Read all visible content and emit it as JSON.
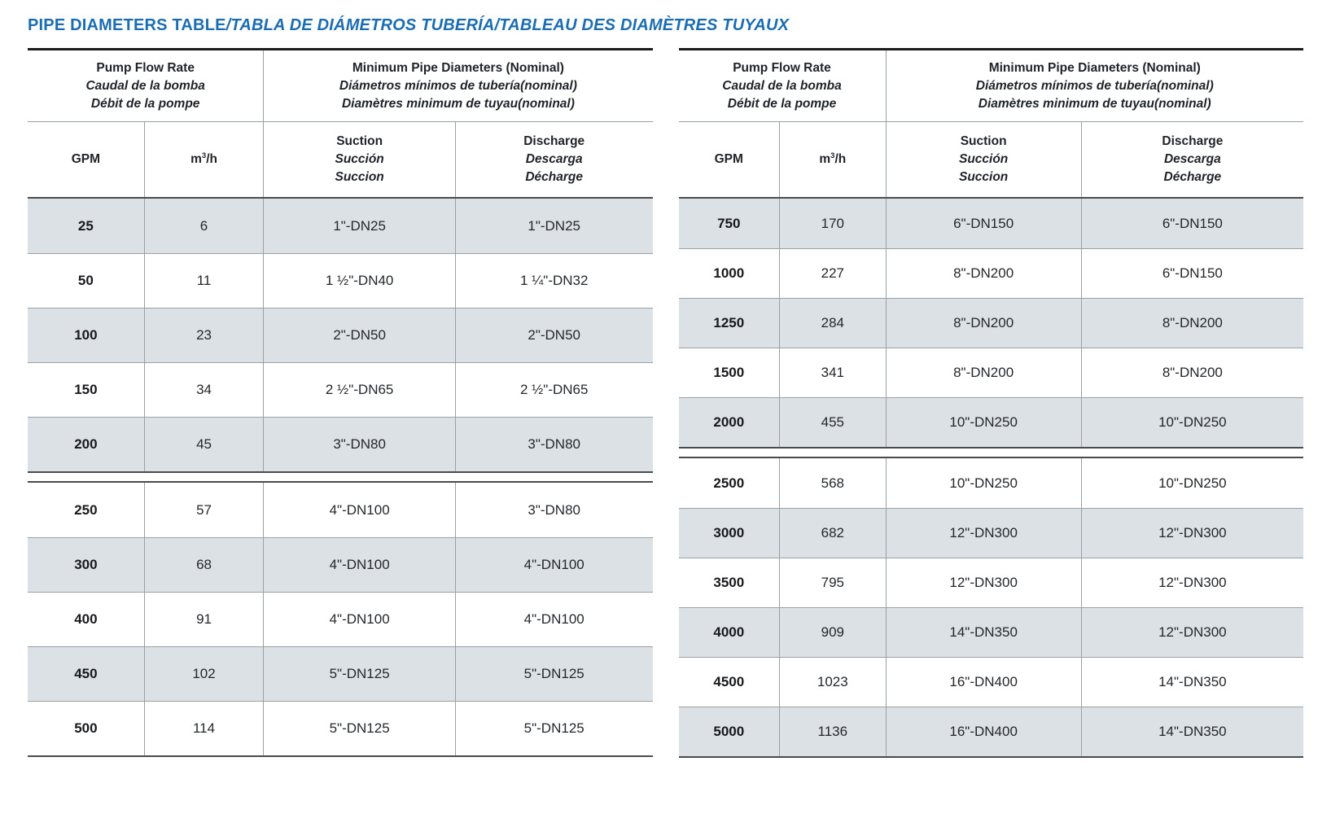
{
  "title": {
    "en": "PIPE DIAMETERS TABLE",
    "intl": "/TABLA DE DIÁMETROS TUBERÍA/TABLEAU DES DIAMÈTRES TUYAUX"
  },
  "colors": {
    "title_blue": "#1b6db3",
    "row_shade": "#dce1e6"
  },
  "header": {
    "flow": [
      "Pump Flow Rate",
      "Caudal de la bomba",
      "Débit de la pompe"
    ],
    "diameters": [
      "Minimum Pipe Diameters (Nominal)",
      "Diámetros mínimos de tubería(nominal)",
      "Diamètres minimum de tuyau(nominal)"
    ],
    "gpm": "GPM",
    "m3h": {
      "base": "m",
      "sup": "3",
      "rest": "/h"
    },
    "suction": [
      "Suction",
      "Succión",
      "Succion"
    ],
    "discharge": [
      "Discharge",
      "Descarga",
      "Décharge"
    ]
  },
  "tables": [
    {
      "name": "left",
      "sections": [
        {
          "rows": [
            {
              "gpm": "25",
              "m3h": "6",
              "suction": "1\"-DN25",
              "discharge": "1\"-DN25"
            },
            {
              "gpm": "50",
              "m3h": "11",
              "suction": "1 ½\"-DN40",
              "discharge": "1 ¼\"-DN32"
            },
            {
              "gpm": "100",
              "m3h": "23",
              "suction": "2\"-DN50",
              "discharge": "2\"-DN50"
            },
            {
              "gpm": "150",
              "m3h": "34",
              "suction": "2 ½\"-DN65",
              "discharge": "2 ½\"-DN65"
            },
            {
              "gpm": "200",
              "m3h": "45",
              "suction": "3\"-DN80",
              "discharge": "3\"-DN80"
            }
          ]
        },
        {
          "rows": [
            {
              "gpm": "250",
              "m3h": "57",
              "suction": "4\"-DN100",
              "discharge": "3\"-DN80"
            },
            {
              "gpm": "300",
              "m3h": "68",
              "suction": "4\"-DN100",
              "discharge": "4\"-DN100"
            },
            {
              "gpm": "400",
              "m3h": "91",
              "suction": "4\"-DN100",
              "discharge": "4\"-DN100"
            },
            {
              "gpm": "450",
              "m3h": "102",
              "suction": "5\"-DN125",
              "discharge": "5\"-DN125"
            },
            {
              "gpm": "500",
              "m3h": "114",
              "suction": "5\"-DN125",
              "discharge": "5\"-DN125"
            }
          ]
        }
      ]
    },
    {
      "name": "right",
      "sections": [
        {
          "rows": [
            {
              "gpm": "750",
              "m3h": "170",
              "suction": "6\"-DN150",
              "discharge": "6\"-DN150"
            },
            {
              "gpm": "1000",
              "m3h": "227",
              "suction": "8\"-DN200",
              "discharge": "6\"-DN150"
            },
            {
              "gpm": "1250",
              "m3h": "284",
              "suction": "8\"-DN200",
              "discharge": "8\"-DN200"
            },
            {
              "gpm": "1500",
              "m3h": "341",
              "suction": "8\"-DN200",
              "discharge": "8\"-DN200"
            },
            {
              "gpm": "2000",
              "m3h": "455",
              "suction": "10\"-DN250",
              "discharge": "10\"-DN250"
            }
          ]
        },
        {
          "rows": [
            {
              "gpm": "2500",
              "m3h": "568",
              "suction": "10\"-DN250",
              "discharge": "10\"-DN250"
            },
            {
              "gpm": "3000",
              "m3h": "682",
              "suction": "12\"-DN300",
              "discharge": "12\"-DN300"
            },
            {
              "gpm": "3500",
              "m3h": "795",
              "suction": "12\"-DN300",
              "discharge": "12\"-DN300"
            },
            {
              "gpm": "4000",
              "m3h": "909",
              "suction": "14\"-DN350",
              "discharge": "12\"-DN300"
            },
            {
              "gpm": "4500",
              "m3h": "1023",
              "suction": "16\"-DN400",
              "discharge": "14\"-DN350"
            },
            {
              "gpm": "5000",
              "m3h": "1136",
              "suction": "16\"-DN400",
              "discharge": "14\"-DN350"
            }
          ]
        }
      ]
    }
  ]
}
